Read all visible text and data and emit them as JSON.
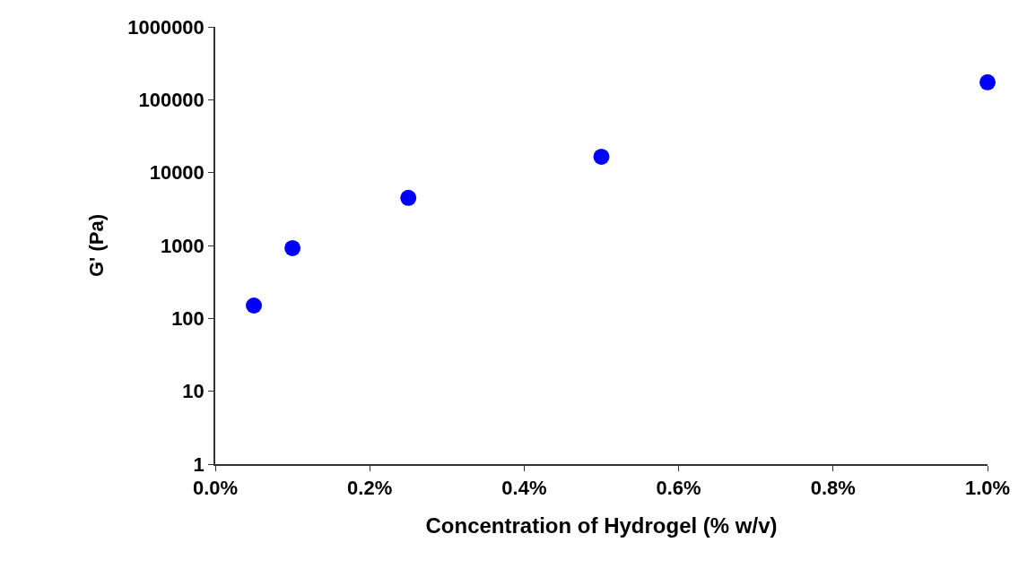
{
  "chart_data": {
    "type": "scatter",
    "xlabel": "Concentration of Hydrogel (% w/v)",
    "ylabel": "G' (Pa)",
    "x": [
      0.05,
      0.1,
      0.25,
      0.5,
      1.0
    ],
    "series": [
      {
        "color": "#0000ff",
        "values": [
          150,
          920,
          4500,
          16500,
          174000
        ]
      }
    ],
    "log": "y",
    "marker": "circle",
    "xlim": [
      0,
      1.0
    ],
    "xticks": [
      {
        "value": 0,
        "label": "0.0%"
      },
      {
        "value": 0.2,
        "label": "0.2%"
      },
      {
        "value": 0.4,
        "label": "0.4%"
      },
      {
        "value": 0.6,
        "label": "0.6%"
      },
      {
        "value": 0.8,
        "label": "0.8%"
      },
      {
        "value": 1.0,
        "label": "1.0%"
      }
    ],
    "ylim": [
      1,
      1000000
    ],
    "yticks": [
      1,
      10,
      100,
      1000,
      10000,
      100000,
      1000000
    ]
  }
}
